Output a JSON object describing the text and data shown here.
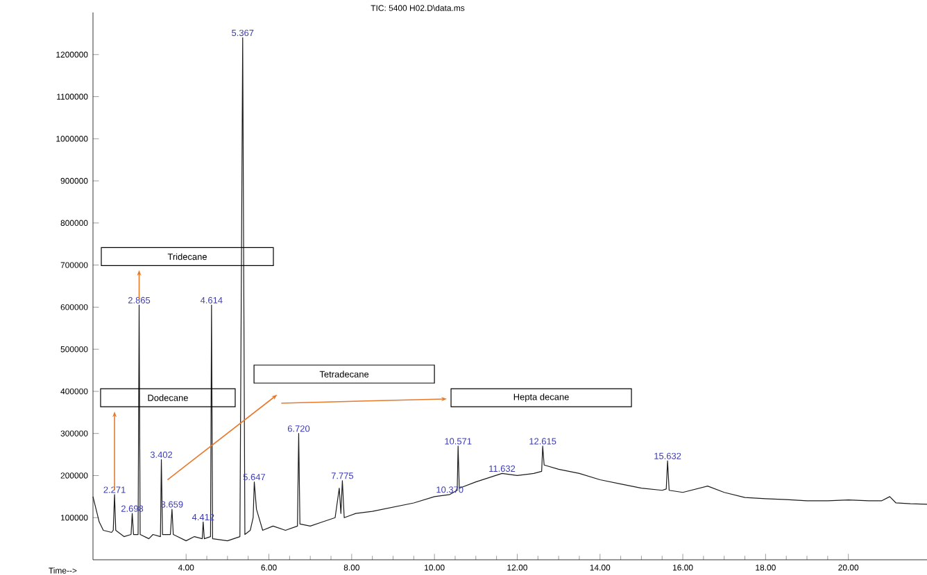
{
  "chart_data": {
    "type": "line",
    "title": "TIC: 5400 H02.D\\data.ms",
    "xlabel": "Time-->",
    "xlim": [
      1.75,
      21.9
    ],
    "ylim": [
      0,
      1300000
    ],
    "xticks": [
      {
        "value": 4,
        "label": "4.00"
      },
      {
        "value": 6,
        "label": "6.00"
      },
      {
        "value": 8,
        "label": "8.00"
      },
      {
        "value": 10,
        "label": "10.00"
      },
      {
        "value": 12,
        "label": "12.00"
      },
      {
        "value": 14,
        "label": "14.00"
      },
      {
        "value": 16,
        "label": "16.00"
      },
      {
        "value": 18,
        "label": "18.00"
      },
      {
        "value": 20,
        "label": "20.00"
      }
    ],
    "yticks": [
      100000,
      200000,
      300000,
      400000,
      500000,
      600000,
      700000,
      800000,
      900000,
      1000000,
      1100000,
      1200000
    ],
    "series": [
      {
        "color": "#1a1a1a",
        "x": [
          1.75,
          1.9,
          2.0,
          2.2,
          2.24,
          2.271,
          2.3,
          2.5,
          2.67,
          2.698,
          2.73,
          2.84,
          2.865,
          2.89,
          3.1,
          3.2,
          3.38,
          3.402,
          3.43,
          3.62,
          3.659,
          3.69,
          4.0,
          4.2,
          4.39,
          4.412,
          4.44,
          4.59,
          4.614,
          4.64,
          5.0,
          5.3,
          5.367,
          5.42,
          5.55,
          5.62,
          5.647,
          5.7,
          5.85,
          6.1,
          6.4,
          6.69,
          6.72,
          6.75,
          7.0,
          7.3,
          7.6,
          7.7,
          7.74,
          7.775,
          7.82,
          8.1,
          8.5,
          9.0,
          9.5,
          10.0,
          10.37,
          10.55,
          10.571,
          10.6,
          11.0,
          11.632,
          12.0,
          12.4,
          12.59,
          12.615,
          12.65,
          13.0,
          13.5,
          14.0,
          14.5,
          15.0,
          15.5,
          15.6,
          15.632,
          15.67,
          16.0,
          16.6,
          17.0,
          17.5,
          18.0,
          18.5,
          19.0,
          19.5,
          20.0,
          20.5,
          20.8,
          21.0,
          21.15,
          21.5,
          21.9
        ],
        "values": [
          150000,
          90000,
          70000,
          65000,
          70000,
          155000,
          70000,
          55000,
          60000,
          110000,
          60000,
          60000,
          605000,
          60000,
          50000,
          60000,
          55000,
          238000,
          60000,
          60000,
          120000,
          60000,
          45000,
          55000,
          50000,
          90000,
          50000,
          55000,
          605000,
          50000,
          45000,
          55000,
          1240000,
          60000,
          70000,
          100000,
          185000,
          120000,
          70000,
          80000,
          70000,
          80000,
          300000,
          85000,
          80000,
          90000,
          100000,
          170000,
          110000,
          188000,
          100000,
          110000,
          115000,
          125000,
          135000,
          150000,
          155000,
          165000,
          270000,
          170000,
          185000,
          205000,
          200000,
          205000,
          210000,
          270000,
          225000,
          215000,
          205000,
          190000,
          180000,
          170000,
          165000,
          168000,
          235000,
          165000,
          160000,
          175000,
          160000,
          148000,
          145000,
          143000,
          140000,
          140000,
          142000,
          140000,
          140000,
          150000,
          135000,
          133000,
          132000
        ]
      }
    ],
    "annotations": [
      "Tridecane",
      "Dodecane",
      "Tetradecane",
      "Hepta decane",
      {
        "text": "5.367",
        "x": 5.367,
        "y": 1240000
      },
      {
        "text": "2.865",
        "x": 2.865,
        "y": 605000
      },
      {
        "text": "4.614",
        "x": 4.614,
        "y": 605000
      },
      {
        "text": "3.402",
        "x": 3.402,
        "y": 238000
      },
      {
        "text": "2.271",
        "x": 2.271,
        "y": 155000
      },
      {
        "text": "2.698",
        "x": 2.698,
        "y": 110000
      },
      {
        "text": "3.659",
        "x": 3.659,
        "y": 120000
      },
      {
        "text": "4.412",
        "x": 4.412,
        "y": 90000
      },
      {
        "text": "5.647",
        "x": 5.647,
        "y": 185000
      },
      {
        "text": "6.720",
        "x": 6.72,
        "y": 300000
      },
      {
        "text": "7.775",
        "x": 7.775,
        "y": 188000
      },
      {
        "text": "10.370",
        "x": 10.37,
        "y": 155000
      },
      {
        "text": "10.571",
        "x": 10.571,
        "y": 270000
      },
      {
        "text": "11.632",
        "x": 11.632,
        "y": 205000
      },
      {
        "text": "12.615",
        "x": 12.615,
        "y": 270000
      },
      {
        "text": "15.632",
        "x": 15.632,
        "y": 235000
      }
    ]
  }
}
